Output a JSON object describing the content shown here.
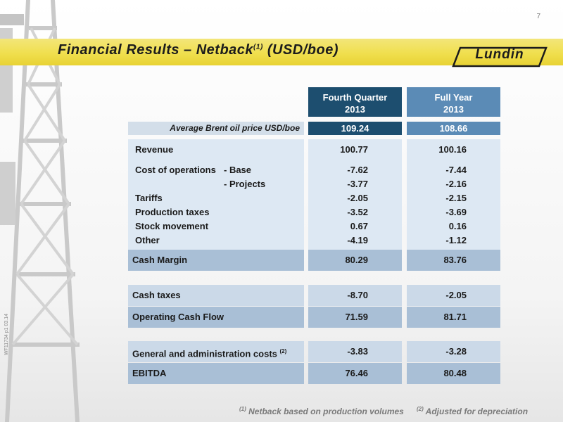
{
  "page": {
    "number": "7",
    "ref_code": "WF11734 p1 03.14"
  },
  "header": {
    "title": "Financial Results – Netback",
    "title_sup": "(1)",
    "title_unit": "(USD/boe)"
  },
  "logo": {
    "text": "Lundin"
  },
  "columns": {
    "q4": {
      "line1": "Fourth Quarter",
      "line2": "2013"
    },
    "fy": {
      "line1": "Full Year",
      "line2": "2013"
    }
  },
  "brent": {
    "label": "Average Brent oil price USD/boe",
    "q4": "109.24",
    "fy": "108.66"
  },
  "rows": {
    "revenue": {
      "label": "Revenue",
      "q4": "100.77",
      "fy": "100.16"
    },
    "cost_base": {
      "label": "Cost of operations",
      "sub": "- Base",
      "q4": "-7.62",
      "fy": "-7.44"
    },
    "cost_projects": {
      "sub": "- Projects",
      "q4": "-3.77",
      "fy": "-2.16"
    },
    "tariffs": {
      "label": "Tariffs",
      "q4": "-2.05",
      "fy": "-2.15"
    },
    "production_taxes": {
      "label": "Production taxes",
      "q4": "-3.52",
      "fy": "-3.69"
    },
    "stock_movement": {
      "label": "Stock movement",
      "q4": "0.67",
      "fy": "0.16"
    },
    "other": {
      "label": "Other",
      "q4": "-4.19",
      "fy": "-1.12"
    }
  },
  "summary": {
    "cash_margin": {
      "label": "Cash Margin",
      "q4": "80.29",
      "fy": "83.76"
    },
    "cash_taxes": {
      "label": "Cash taxes",
      "q4": "-8.70",
      "fy": "-2.05"
    },
    "operating_cash_flow": {
      "label": "Operating Cash Flow",
      "q4": "71.59",
      "fy": "81.71"
    },
    "gna": {
      "label": "General and administration costs",
      "sup": "(2)",
      "q4": "-3.83",
      "fy": "-3.28"
    },
    "ebitda": {
      "label": "EBITDA",
      "q4": "76.46",
      "fy": "80.48"
    }
  },
  "footnotes": {
    "f1": {
      "mark": "(1)",
      "text": "Netback based on production volumes"
    },
    "f2": {
      "mark": "(2)",
      "text": "Adjusted for depreciation"
    }
  },
  "colors": {
    "accent_dark": "#1d4e6f",
    "accent_mid": "#5b8bb6",
    "band_yellow": "#f0df4e",
    "panel": "#dde8f3"
  }
}
